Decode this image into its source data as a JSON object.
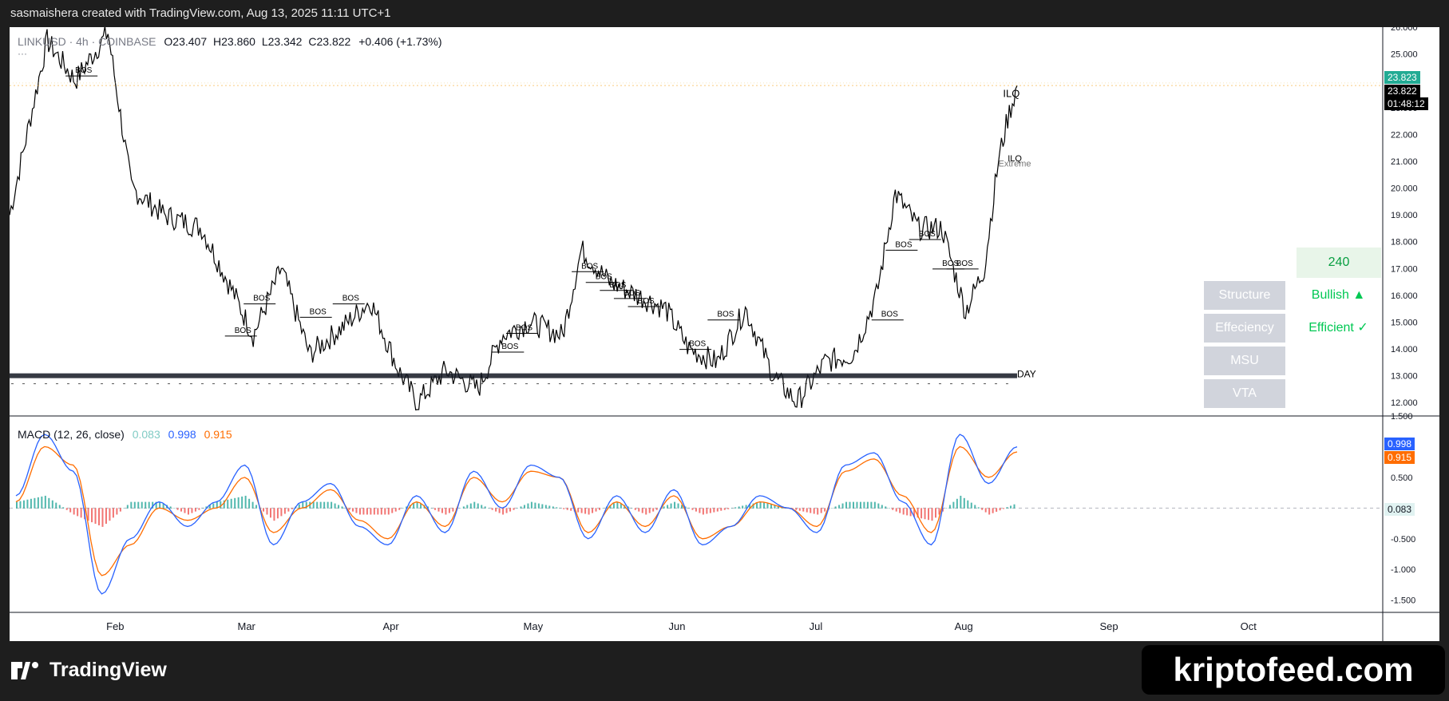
{
  "header": {
    "caption": "sasmaishera created with TradingView.com, Aug 13, 2025 11:11 UTC+1"
  },
  "legend": {
    "symbol": "LINKUSD · 4h · COINBASE",
    "o_label": "O",
    "o": "23.407",
    "h_label": "H",
    "h": "23.860",
    "l_label": "L",
    "l": "23.342",
    "c_label": "C",
    "c": "23.822",
    "change": "+0.406 (+1.73%)",
    "dots": "···"
  },
  "price_axis": {
    "ticks": [
      "26.000",
      "25.000",
      "23.000",
      "22.000",
      "21.000",
      "20.000",
      "19.000",
      "18.000",
      "17.000",
      "16.000",
      "15.000",
      "14.000",
      "13.000",
      "12.000"
    ],
    "last_price_tag": "23.823",
    "current_tag": "23.822",
    "countdown": "01:48:12",
    "last_color": "#22ab94",
    "current_color": "#000000"
  },
  "chart_data": [
    {
      "type": "line",
      "title": "LINKUSD, 4h, COINBASE",
      "xlabel": "",
      "ylabel": "",
      "x_ticks": [
        "Feb",
        "Mar",
        "Apr",
        "May",
        "Jun",
        "Jul",
        "Aug",
        "Sep",
        "Oct"
      ],
      "ylim": [
        11.5,
        26.0
      ],
      "grid": false,
      "series": [
        {
          "x": [
            "2025-01-10",
            "2025-01-18",
            "2025-01-24",
            "2025-01-31",
            "2025-02-05",
            "2025-02-12",
            "2025-02-20",
            "2025-02-27",
            "2025-03-03",
            "2025-03-09",
            "2025-03-15",
            "2025-03-22",
            "2025-03-28",
            "2025-04-03",
            "2025-04-07",
            "2025-04-13",
            "2025-04-20",
            "2025-04-25",
            "2025-05-01",
            "2025-05-08",
            "2025-05-12",
            "2025-05-18",
            "2025-05-24",
            "2025-05-30",
            "2025-06-04",
            "2025-06-10",
            "2025-06-16",
            "2025-06-22",
            "2025-06-27",
            "2025-07-03",
            "2025-07-09",
            "2025-07-14",
            "2025-07-18",
            "2025-07-23",
            "2025-07-28",
            "2025-08-02",
            "2025-08-06",
            "2025-08-09",
            "2025-08-11",
            "2025-08-13"
          ],
          "values": [
            19.0,
            25.5,
            24.0,
            25.8,
            20.0,
            19.0,
            18.5,
            16.0,
            14.5,
            17.0,
            13.8,
            14.8,
            15.8,
            13.2,
            12.0,
            13.2,
            12.5,
            14.5,
            15.0,
            14.5,
            17.7,
            16.5,
            16.0,
            15.5,
            14.0,
            13.5,
            15.5,
            13.0,
            12.0,
            13.5,
            13.8,
            16.0,
            19.8,
            18.5,
            18.5,
            15.4,
            17.0,
            21.0,
            22.6,
            23.822
          ]
        }
      ],
      "annotations": [
        "BOS",
        "BOS",
        "BOS",
        "BOS",
        "BOS",
        "BOS",
        "BOS",
        "BOS",
        "BOS",
        "BOS",
        "BOS",
        "BOS",
        "BOS",
        "BOS",
        "BOS",
        "BOS",
        "BOS",
        "BOS",
        "BOS",
        "ILQ",
        "ILQ",
        "Extreme",
        "DAY"
      ]
    },
    {
      "type": "line",
      "title": "MACD (12, 26, close)",
      "xlabel": "",
      "ylabel": "",
      "ylim": [
        -1.7,
        1.5
      ],
      "y_ticks": [
        "1.500",
        "0.500",
        "-0.500",
        "-1.000",
        "-1.500"
      ],
      "grid": false,
      "legend_values": [
        "0.083",
        "0.998",
        "0.915"
      ],
      "series": [
        {
          "name": "0.998",
          "color": "#2962ff",
          "values": [
            0.2,
            1.2,
            0.6,
            -1.4,
            -0.5,
            0.1,
            -0.3,
            0.1,
            0.7,
            -0.6,
            0.1,
            0.4,
            -0.3,
            -0.6,
            0.2,
            -0.4,
            0.6,
            0.0,
            0.7,
            0.5,
            -0.5,
            0.2,
            -0.4,
            0.3,
            -0.6,
            -0.3,
            0.2,
            0.0,
            -0.4,
            0.7,
            0.9,
            0.1,
            -0.6,
            1.2,
            0.4,
            0.998
          ]
        },
        {
          "name": "0.915",
          "color": "#ff6d00",
          "values": [
            0.1,
            1.0,
            0.7,
            -1.1,
            -0.6,
            0.0,
            -0.2,
            0.0,
            0.5,
            -0.4,
            0.0,
            0.3,
            -0.2,
            -0.5,
            0.1,
            -0.3,
            0.5,
            0.1,
            0.6,
            0.5,
            -0.4,
            0.1,
            -0.3,
            0.2,
            -0.5,
            -0.3,
            0.1,
            0.0,
            -0.3,
            0.6,
            0.8,
            0.2,
            -0.4,
            1.0,
            0.5,
            0.915
          ]
        },
        {
          "name": "0.083",
          "color": "#26a69a",
          "values": [
            0.1,
            0.2,
            -0.1,
            -0.3,
            0.1,
            0.1,
            -0.1,
            0.1,
            0.2,
            -0.2,
            0.1,
            0.1,
            -0.1,
            -0.1,
            0.1,
            -0.1,
            0.1,
            -0.1,
            0.1,
            0.0,
            -0.1,
            0.1,
            -0.1,
            0.1,
            -0.1,
            0.0,
            0.1,
            0.0,
            -0.1,
            0.1,
            0.1,
            -0.1,
            -0.2,
            0.2,
            -0.1,
            0.083
          ]
        }
      ]
    }
  ],
  "time_axis": {
    "labels": [
      "Feb",
      "Mar",
      "Apr",
      "May",
      "Jun",
      "Jul",
      "Aug",
      "Sep",
      "Oct"
    ]
  },
  "macd_legend": {
    "label": "MACD (12, 26, close)",
    "hist": "0.083",
    "macd": "0.998",
    "signal": "0.915",
    "hist_color": "#80cbc4",
    "macd_color": "#2962ff",
    "signal_color": "#ff6d00"
  },
  "macd_axis": {
    "ticks": [
      "1.500",
      "0.500",
      "-0.500",
      "-1.000",
      "-1.500"
    ],
    "macd_tag": "0.998",
    "signal_tag": "0.915",
    "hist_tag": "0.083"
  },
  "panel": {
    "timeframe": "240",
    "rows": [
      {
        "label": "Structure",
        "value": "Bullish ▲"
      },
      {
        "label": "Effeciency",
        "value": "Efficient ✓"
      },
      {
        "label": "MSU",
        "value": ""
      },
      {
        "label": "VTA",
        "value": ""
      }
    ]
  },
  "footer": {
    "brand": "TradingView",
    "watermark": "kriptofeed.com"
  }
}
